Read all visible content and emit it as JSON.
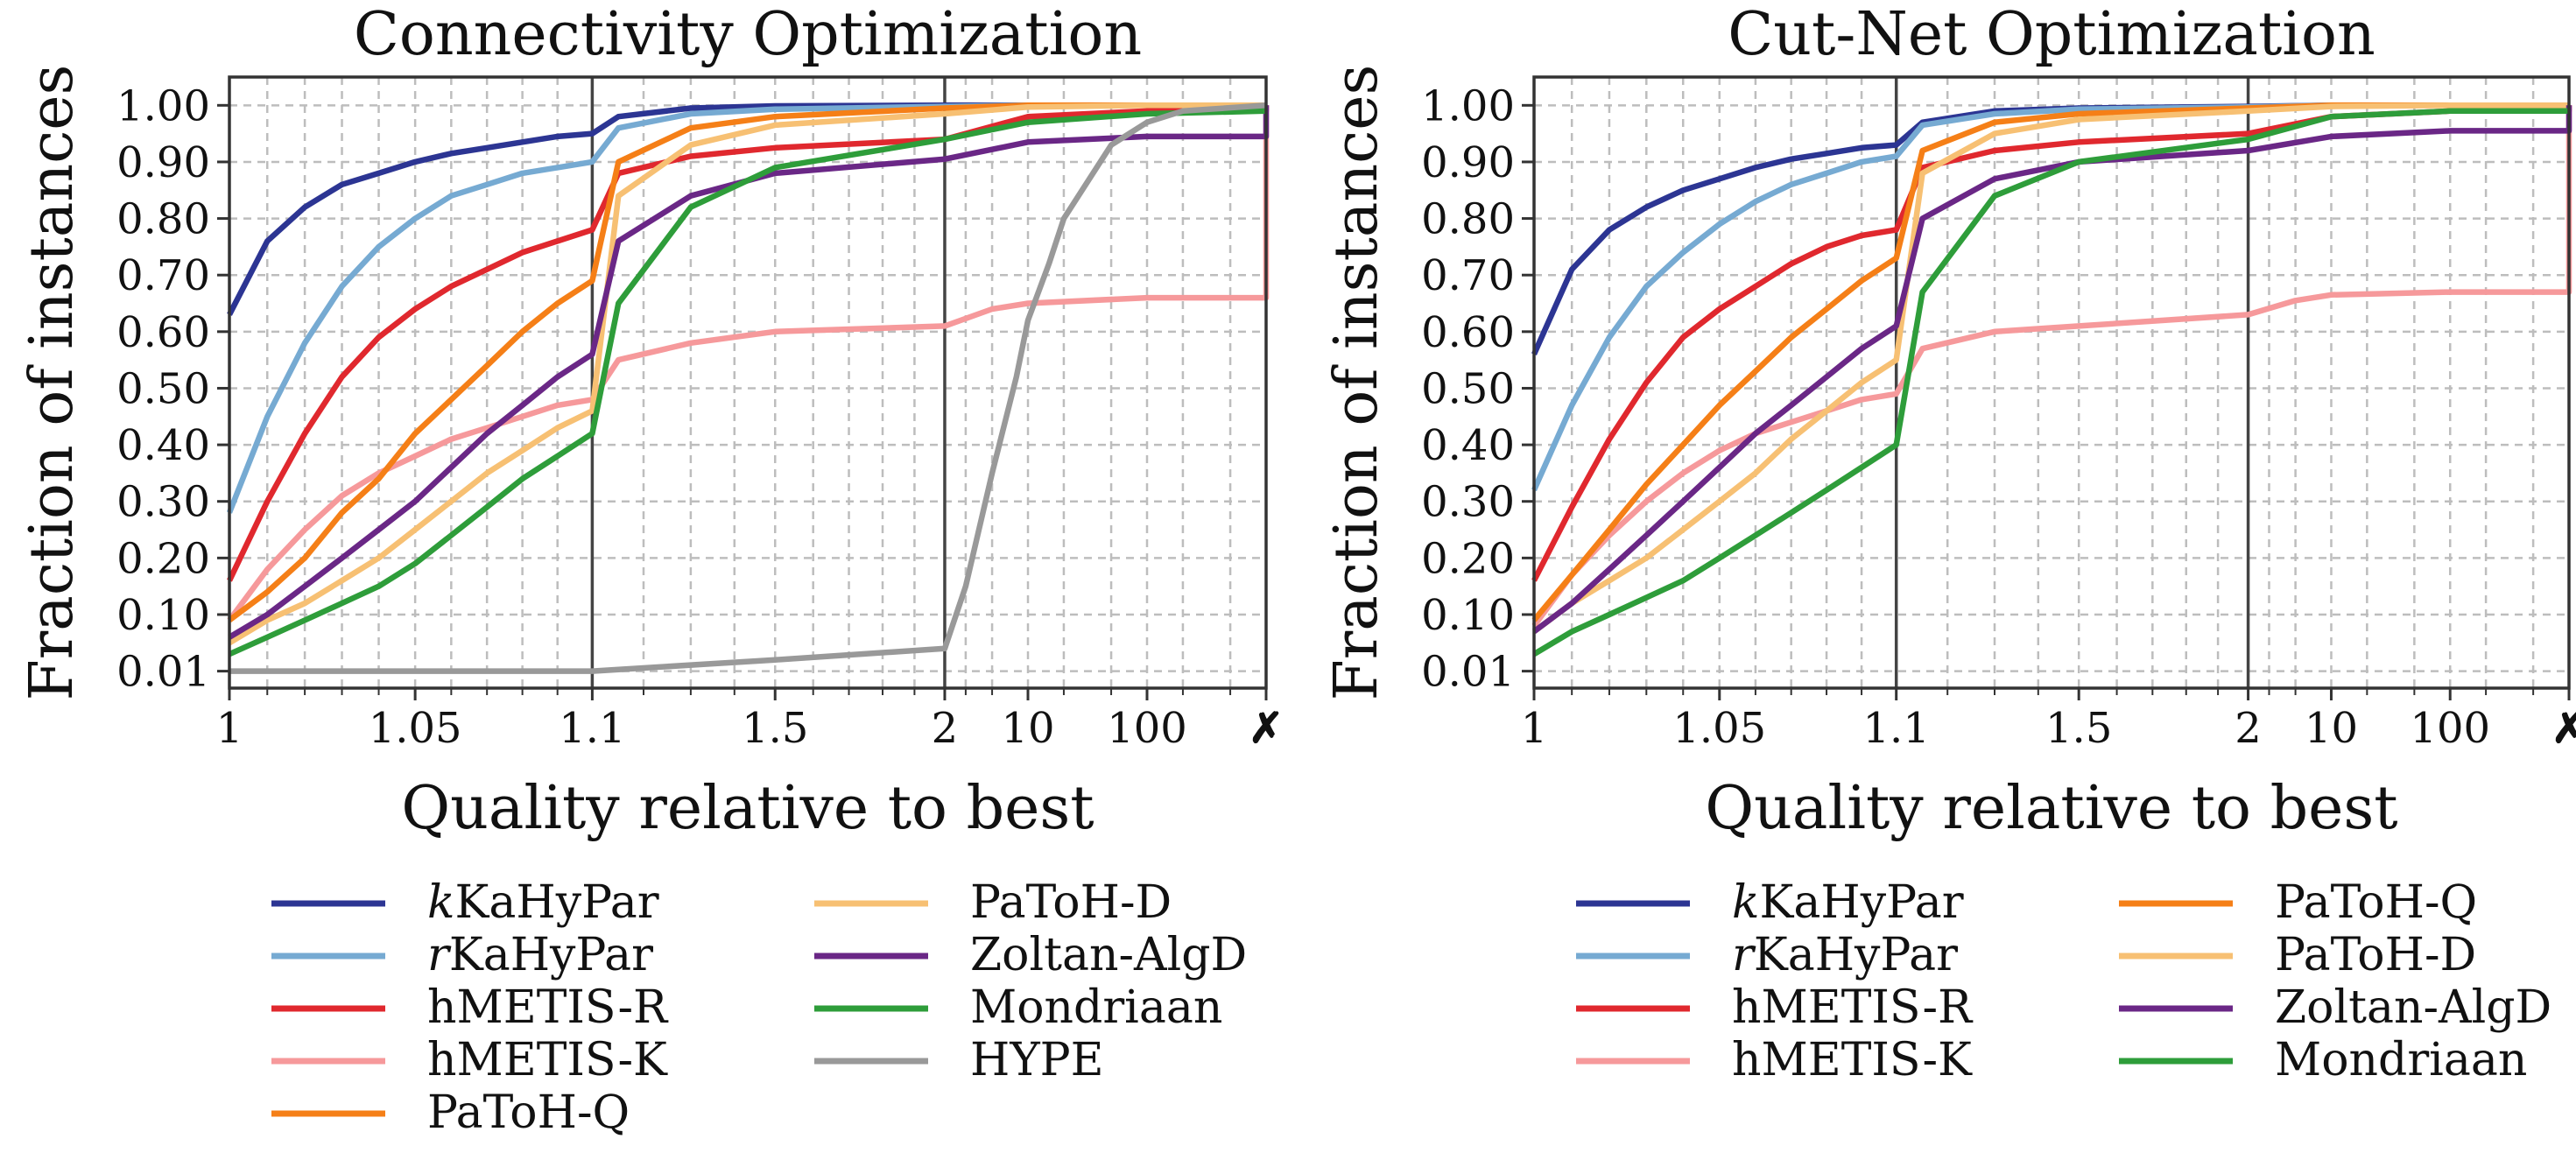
{
  "page": {
    "background": "#ffffff"
  },
  "series_styles": {
    "kKaHyPar": {
      "color": "#2c3593",
      "label": "kKaHyPar",
      "prefix": "k",
      "suffix": "KaHyPar"
    },
    "rKaHyPar": {
      "color": "#76aad2",
      "label": "rKaHyPar",
      "prefix": "r",
      "suffix": "KaHyPar"
    },
    "hMETIS-R": {
      "color": "#e0282e",
      "label": "hMETIS-R"
    },
    "hMETIS-K": {
      "color": "#f6999b",
      "label": "hMETIS-K"
    },
    "PaToH-Q": {
      "color": "#f57f17",
      "label": "PaToH-Q"
    },
    "PaToH-D": {
      "color": "#f7c073",
      "label": "PaToH-D"
    },
    "Zoltan-AlgD": {
      "color": "#6a2786",
      "label": "Zoltan-AlgD"
    },
    "Mondriaan": {
      "color": "#2e9d3a",
      "label": "Mondriaan"
    },
    "HYPE": {
      "color": "#999999",
      "label": "HYPE"
    }
  },
  "chart_data": [
    {
      "type": "line",
      "title": "Connectivity Optimization",
      "xlabel": "Quality relative to best",
      "ylabel": "Fraction of instances",
      "x_ticks": [
        "1",
        "1.05",
        "1.1",
        "1.5",
        "2",
        "10",
        "100",
        "✗"
      ],
      "y_ticks": [
        "0.01",
        "0.10",
        "0.20",
        "0.30",
        "0.40",
        "0.50",
        "0.60",
        "0.70",
        "0.80",
        "0.90",
        "1.00"
      ],
      "ylim": [
        -0.03,
        1.05
      ],
      "grid": true,
      "legend": {
        "position": "bottom",
        "columns": [
          [
            "kKaHyPar",
            "rKaHyPar",
            "hMETIS-R",
            "hMETIS-K",
            "PaToH-Q"
          ],
          [
            "PaToH-D",
            "Zoltan-AlgD",
            "Mondriaan",
            "HYPE"
          ]
        ]
      },
      "series": [
        {
          "name": "kKaHyPar",
          "x": [
            1,
            1.01,
            1.02,
            1.03,
            1.04,
            1.05,
            1.06,
            1.07,
            1.08,
            1.09,
            1.1,
            1.15,
            1.3,
            1.5,
            2,
            10,
            100,
            1000
          ],
          "y": [
            0.63,
            0.76,
            0.82,
            0.86,
            0.88,
            0.9,
            0.915,
            0.925,
            0.935,
            0.945,
            0.95,
            0.98,
            0.995,
            0.999,
            1.0,
            1.0,
            1.0,
            1.0
          ]
        },
        {
          "name": "rKaHyPar",
          "x": [
            1,
            1.01,
            1.02,
            1.03,
            1.04,
            1.05,
            1.06,
            1.07,
            1.08,
            1.09,
            1.1,
            1.15,
            1.3,
            1.5,
            2,
            10,
            100,
            1000
          ],
          "y": [
            0.28,
            0.45,
            0.58,
            0.68,
            0.75,
            0.8,
            0.84,
            0.86,
            0.88,
            0.89,
            0.9,
            0.96,
            0.985,
            0.993,
            0.998,
            1.0,
            1.0,
            1.0
          ]
        },
        {
          "name": "hMETIS-R",
          "x": [
            1,
            1.01,
            1.02,
            1.03,
            1.04,
            1.05,
            1.06,
            1.07,
            1.08,
            1.09,
            1.1,
            1.15,
            1.3,
            1.5,
            2,
            10,
            100,
            1000,
            1000
          ],
          "y": [
            0.16,
            0.3,
            0.42,
            0.52,
            0.59,
            0.64,
            0.68,
            0.71,
            0.74,
            0.76,
            0.78,
            0.88,
            0.91,
            0.925,
            0.94,
            0.98,
            0.99,
            0.99,
            1.0
          ]
        },
        {
          "name": "hMETIS-K",
          "x": [
            1,
            1.01,
            1.02,
            1.03,
            1.04,
            1.05,
            1.06,
            1.07,
            1.08,
            1.09,
            1.1,
            1.15,
            1.3,
            1.5,
            2,
            5,
            10,
            100,
            1000,
            1000
          ],
          "y": [
            0.09,
            0.18,
            0.25,
            0.31,
            0.35,
            0.38,
            0.41,
            0.43,
            0.45,
            0.47,
            0.48,
            0.55,
            0.58,
            0.6,
            0.61,
            0.64,
            0.65,
            0.66,
            0.66,
            1.0
          ]
        },
        {
          "name": "PaToH-Q",
          "x": [
            1,
            1.01,
            1.02,
            1.03,
            1.04,
            1.05,
            1.06,
            1.07,
            1.08,
            1.09,
            1.1,
            1.15,
            1.3,
            1.5,
            2,
            10,
            100,
            1000
          ],
          "y": [
            0.09,
            0.14,
            0.2,
            0.28,
            0.34,
            0.42,
            0.48,
            0.54,
            0.6,
            0.65,
            0.69,
            0.9,
            0.96,
            0.98,
            0.995,
            1.0,
            1.0,
            1.0
          ]
        },
        {
          "name": "PaToH-D",
          "x": [
            1,
            1.01,
            1.02,
            1.03,
            1.04,
            1.05,
            1.06,
            1.07,
            1.08,
            1.09,
            1.1,
            1.15,
            1.3,
            1.5,
            2,
            10,
            100,
            1000
          ],
          "y": [
            0.05,
            0.09,
            0.12,
            0.16,
            0.2,
            0.25,
            0.3,
            0.35,
            0.39,
            0.43,
            0.46,
            0.84,
            0.93,
            0.965,
            0.985,
            0.997,
            1.0,
            1.0
          ]
        },
        {
          "name": "Zoltan-AlgD",
          "x": [
            1,
            1.01,
            1.02,
            1.03,
            1.04,
            1.05,
            1.06,
            1.07,
            1.08,
            1.09,
            1.1,
            1.15,
            1.3,
            1.5,
            2,
            10,
            100,
            1000,
            1000
          ],
          "y": [
            0.06,
            0.1,
            0.15,
            0.2,
            0.25,
            0.3,
            0.36,
            0.42,
            0.47,
            0.52,
            0.56,
            0.76,
            0.84,
            0.88,
            0.905,
            0.935,
            0.945,
            0.945,
            1.0
          ]
        },
        {
          "name": "Mondriaan",
          "x": [
            1,
            1.01,
            1.02,
            1.03,
            1.04,
            1.05,
            1.06,
            1.07,
            1.08,
            1.09,
            1.1,
            1.15,
            1.3,
            1.5,
            2,
            10,
            100,
            1000
          ],
          "y": [
            0.03,
            0.06,
            0.09,
            0.12,
            0.15,
            0.19,
            0.24,
            0.29,
            0.34,
            0.38,
            0.42,
            0.65,
            0.82,
            0.89,
            0.94,
            0.97,
            0.985,
            0.99
          ]
        },
        {
          "name": "HYPE",
          "x": [
            1,
            1.05,
            1.1,
            1.5,
            2,
            3,
            5,
            8,
            10,
            15,
            20,
            50,
            100,
            200,
            1000
          ],
          "y": [
            0.01,
            0.01,
            0.01,
            0.02,
            0.04,
            0.15,
            0.35,
            0.52,
            0.62,
            0.72,
            0.8,
            0.93,
            0.97,
            0.99,
            1.0
          ]
        }
      ]
    },
    {
      "type": "line",
      "title": "Cut-Net Optimization",
      "xlabel": "Quality relative to best",
      "ylabel": "Fraction of instances",
      "x_ticks": [
        "1",
        "1.05",
        "1.1",
        "1.5",
        "2",
        "10",
        "100",
        "✗"
      ],
      "y_ticks": [
        "0.01",
        "0.10",
        "0.20",
        "0.30",
        "0.40",
        "0.50",
        "0.60",
        "0.70",
        "0.80",
        "0.90",
        "1.00"
      ],
      "ylim": [
        -0.03,
        1.05
      ],
      "grid": true,
      "legend": {
        "position": "bottom",
        "columns": [
          [
            "kKaHyPar",
            "rKaHyPar",
            "hMETIS-R",
            "hMETIS-K"
          ],
          [
            "PaToH-Q",
            "PaToH-D",
            "Zoltan-AlgD",
            "Mondriaan"
          ]
        ]
      },
      "series": [
        {
          "name": "kKaHyPar",
          "x": [
            1,
            1.01,
            1.02,
            1.03,
            1.04,
            1.05,
            1.06,
            1.07,
            1.08,
            1.09,
            1.1,
            1.15,
            1.3,
            1.5,
            2,
            10,
            100,
            1000
          ],
          "y": [
            0.56,
            0.71,
            0.78,
            0.82,
            0.85,
            0.87,
            0.89,
            0.905,
            0.915,
            0.925,
            0.93,
            0.97,
            0.99,
            0.995,
            0.998,
            1.0,
            1.0,
            1.0
          ]
        },
        {
          "name": "rKaHyPar",
          "x": [
            1,
            1.01,
            1.02,
            1.03,
            1.04,
            1.05,
            1.06,
            1.07,
            1.08,
            1.09,
            1.1,
            1.15,
            1.3,
            1.5,
            2,
            10,
            100,
            1000
          ],
          "y": [
            0.32,
            0.47,
            0.59,
            0.68,
            0.74,
            0.79,
            0.83,
            0.86,
            0.88,
            0.9,
            0.91,
            0.965,
            0.985,
            0.993,
            0.997,
            1.0,
            1.0,
            1.0
          ]
        },
        {
          "name": "hMETIS-R",
          "x": [
            1,
            1.01,
            1.02,
            1.03,
            1.04,
            1.05,
            1.06,
            1.07,
            1.08,
            1.09,
            1.1,
            1.15,
            1.3,
            1.5,
            2,
            10,
            100,
            1000,
            1000
          ],
          "y": [
            0.16,
            0.29,
            0.41,
            0.51,
            0.59,
            0.64,
            0.68,
            0.72,
            0.75,
            0.77,
            0.78,
            0.89,
            0.92,
            0.935,
            0.95,
            0.98,
            0.99,
            0.99,
            1.0
          ]
        },
        {
          "name": "hMETIS-K",
          "x": [
            1,
            1.01,
            1.02,
            1.03,
            1.04,
            1.05,
            1.06,
            1.07,
            1.08,
            1.09,
            1.1,
            1.15,
            1.3,
            1.5,
            2,
            5,
            10,
            100,
            1000,
            1000
          ],
          "y": [
            0.08,
            0.17,
            0.24,
            0.3,
            0.35,
            0.39,
            0.42,
            0.44,
            0.46,
            0.48,
            0.49,
            0.57,
            0.6,
            0.61,
            0.63,
            0.655,
            0.665,
            0.67,
            0.67,
            1.0
          ]
        },
        {
          "name": "PaToH-Q",
          "x": [
            1,
            1.01,
            1.02,
            1.03,
            1.04,
            1.05,
            1.06,
            1.07,
            1.08,
            1.09,
            1.1,
            1.15,
            1.3,
            1.5,
            2,
            10,
            100,
            1000
          ],
          "y": [
            0.09,
            0.17,
            0.25,
            0.33,
            0.4,
            0.47,
            0.53,
            0.59,
            0.64,
            0.69,
            0.73,
            0.92,
            0.97,
            0.985,
            0.995,
            1.0,
            1.0,
            1.0
          ]
        },
        {
          "name": "PaToH-D",
          "x": [
            1,
            1.01,
            1.02,
            1.03,
            1.04,
            1.05,
            1.06,
            1.07,
            1.08,
            1.09,
            1.1,
            1.15,
            1.3,
            1.5,
            2,
            10,
            100,
            1000
          ],
          "y": [
            0.07,
            0.12,
            0.16,
            0.2,
            0.25,
            0.3,
            0.35,
            0.41,
            0.46,
            0.51,
            0.55,
            0.88,
            0.95,
            0.975,
            0.99,
            0.998,
            1.0,
            1.0
          ]
        },
        {
          "name": "Zoltan-AlgD",
          "x": [
            1,
            1.01,
            1.02,
            1.03,
            1.04,
            1.05,
            1.06,
            1.07,
            1.08,
            1.09,
            1.1,
            1.15,
            1.3,
            1.5,
            2,
            10,
            100,
            1000,
            1000
          ],
          "y": [
            0.07,
            0.12,
            0.18,
            0.24,
            0.3,
            0.36,
            0.42,
            0.47,
            0.52,
            0.57,
            0.61,
            0.8,
            0.87,
            0.9,
            0.92,
            0.945,
            0.955,
            0.955,
            1.0
          ]
        },
        {
          "name": "Mondriaan",
          "x": [
            1,
            1.01,
            1.02,
            1.03,
            1.04,
            1.05,
            1.06,
            1.07,
            1.08,
            1.09,
            1.1,
            1.15,
            1.3,
            1.5,
            2,
            10,
            100,
            1000
          ],
          "y": [
            0.03,
            0.07,
            0.1,
            0.13,
            0.16,
            0.2,
            0.24,
            0.28,
            0.32,
            0.36,
            0.4,
            0.67,
            0.84,
            0.9,
            0.94,
            0.98,
            0.99,
            0.99
          ]
        }
      ]
    }
  ]
}
